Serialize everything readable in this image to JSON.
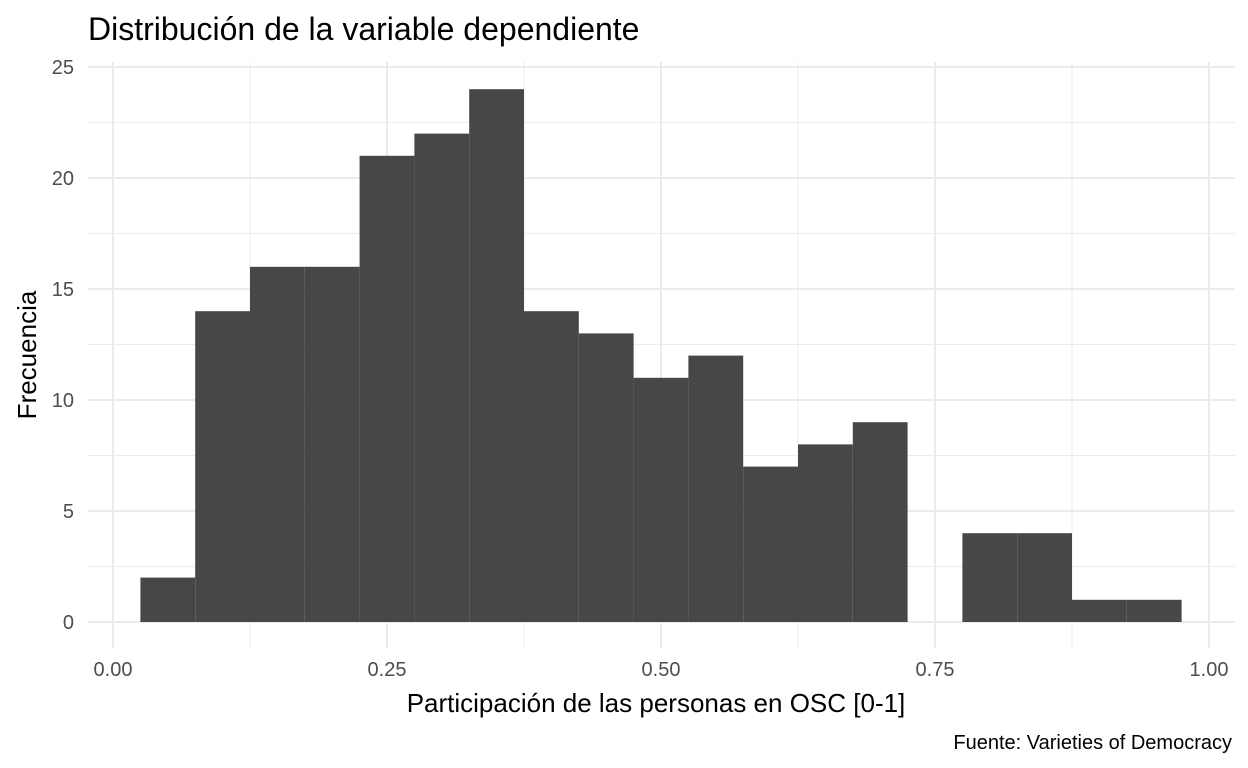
{
  "chart_data": {
    "type": "histogram",
    "title": "Distribución de la variable dependiente",
    "xlabel": "Participación de las personas en OSC [0-1]",
    "ylabel": "Frecuencia",
    "caption": "Fuente: Varieties of Democracy",
    "xlim": [
      0,
      1
    ],
    "ylim": [
      0,
      25
    ],
    "x_ticks": [
      "0.00",
      "0.25",
      "0.50",
      "0.75",
      "1.00"
    ],
    "y_ticks": [
      "0",
      "5",
      "10",
      "15",
      "20",
      "25"
    ],
    "grid": true,
    "legend": "none",
    "bar_color": "#474747",
    "bins": [
      {
        "x0": 0.025,
        "x1": 0.075,
        "count": 2
      },
      {
        "x0": 0.075,
        "x1": 0.125,
        "count": 14
      },
      {
        "x0": 0.125,
        "x1": 0.175,
        "count": 16
      },
      {
        "x0": 0.175,
        "x1": 0.225,
        "count": 16
      },
      {
        "x0": 0.225,
        "x1": 0.275,
        "count": 21
      },
      {
        "x0": 0.275,
        "x1": 0.325,
        "count": 22
      },
      {
        "x0": 0.325,
        "x1": 0.375,
        "count": 24
      },
      {
        "x0": 0.375,
        "x1": 0.425,
        "count": 14
      },
      {
        "x0": 0.425,
        "x1": 0.475,
        "count": 13
      },
      {
        "x0": 0.475,
        "x1": 0.525,
        "count": 11
      },
      {
        "x0": 0.525,
        "x1": 0.575,
        "count": 12
      },
      {
        "x0": 0.575,
        "x1": 0.625,
        "count": 7
      },
      {
        "x0": 0.625,
        "x1": 0.675,
        "count": 8
      },
      {
        "x0": 0.675,
        "x1": 0.725,
        "count": 9
      },
      {
        "x0": 0.725,
        "x1": 0.775,
        "count": 0
      },
      {
        "x0": 0.775,
        "x1": 0.825,
        "count": 4
      },
      {
        "x0": 0.825,
        "x1": 0.875,
        "count": 4
      },
      {
        "x0": 0.875,
        "x1": 0.925,
        "count": 1
      },
      {
        "x0": 0.925,
        "x1": 0.975,
        "count": 1
      }
    ]
  }
}
